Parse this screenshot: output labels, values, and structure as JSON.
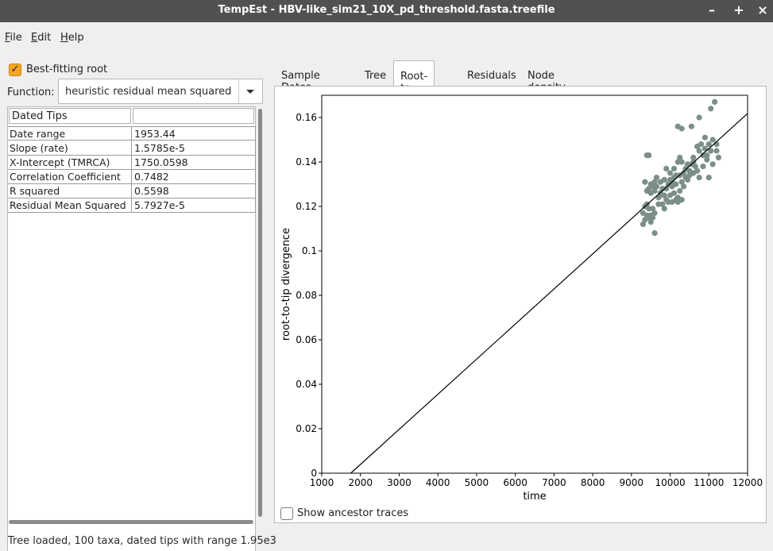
{
  "window": {
    "title": "TempEst - HBV-like_sim21_10X_pd_threshold.fasta.treefile",
    "minimize_label": "–",
    "maximize_label": "+",
    "close_label": "×"
  },
  "menu": [
    {
      "label_u": "F",
      "label_rest": "ile"
    },
    {
      "label_u": "E",
      "label_rest": "dit"
    },
    {
      "label_u": "H",
      "label_rest": "elp"
    }
  ],
  "left_panel": {
    "best_fitting_root_label": "Best-fitting root",
    "best_fitting_root_checked": true,
    "function_label": "Function:",
    "function_value": "heuristic residual mean squared",
    "table_header": "Dated Tips",
    "table_header_value": "",
    "rows": [
      {
        "label": "Date range",
        "value": "1953.44"
      },
      {
        "label": "Slope (rate)",
        "value": "1.5785e-5"
      },
      {
        "label": "X-Intercept (TMRCA)",
        "value": "1750.0598"
      },
      {
        "label": "Correlation Coefficient",
        "value": "0.7482"
      },
      {
        "label": "R squared",
        "value": "0.5598"
      },
      {
        "label": "Residual Mean Squared",
        "value": "5.7927e-5"
      }
    ]
  },
  "tabs": [
    {
      "label": "Sample Dates",
      "active": false
    },
    {
      "label": "Tree",
      "active": false
    },
    {
      "label": "Root-to-tip",
      "active": true
    },
    {
      "label": "Residuals",
      "active": false
    },
    {
      "label": "Node density",
      "active": false
    }
  ],
  "show_ancestor_traces_label": "Show ancestor traces",
  "show_ancestor_traces_checked": false,
  "status_text": "Tree loaded, 100 taxa, dated tips with range 1.95e3",
  "colors": {
    "point": "#7b8f88",
    "line": "#000000",
    "accent": "#f5a623"
  },
  "chart_data": {
    "type": "scatter",
    "xlabel": "time",
    "ylabel": "root-to-tip divergence",
    "xlim": [
      1000,
      12000
    ],
    "ylim": [
      0,
      0.17
    ],
    "x_ticks": [
      1000,
      2000,
      3000,
      4000,
      5000,
      6000,
      7000,
      8000,
      9000,
      10000,
      11000,
      12000
    ],
    "y_ticks": [
      0,
      0.02,
      0.04,
      0.06,
      0.08,
      0.1,
      0.12,
      0.14,
      0.16
    ],
    "y_tick_labels": [
      "0",
      "0.02",
      "0.04",
      "0.06",
      "0.08",
      "0.1",
      "0.12",
      "0.14",
      "0.16"
    ],
    "regression": {
      "slope": 1.5785e-05,
      "x_intercept": 1750.0598
    },
    "grid": false,
    "points": [
      [
        11150,
        0.167
      ],
      [
        11050,
        0.164
      ],
      [
        10750,
        0.16
      ],
      [
        10200,
        0.156
      ],
      [
        10300,
        0.155
      ],
      [
        10550,
        0.156
      ],
      [
        9400,
        0.143
      ],
      [
        9450,
        0.143
      ],
      [
        10900,
        0.151
      ],
      [
        11100,
        0.15
      ],
      [
        11000,
        0.148
      ],
      [
        10800,
        0.148
      ],
      [
        10700,
        0.147
      ],
      [
        11200,
        0.148
      ],
      [
        11200,
        0.145
      ],
      [
        10900,
        0.146
      ],
      [
        11050,
        0.145
      ],
      [
        10750,
        0.145
      ],
      [
        10600,
        0.142
      ],
      [
        10850,
        0.143
      ],
      [
        11250,
        0.142
      ],
      [
        10950,
        0.141
      ],
      [
        10300,
        0.14
      ],
      [
        10200,
        0.14
      ],
      [
        10550,
        0.139
      ],
      [
        10450,
        0.139
      ],
      [
        10650,
        0.138
      ],
      [
        10850,
        0.138
      ],
      [
        10700,
        0.136
      ],
      [
        10500,
        0.136
      ],
      [
        10350,
        0.135
      ],
      [
        10600,
        0.135
      ],
      [
        10250,
        0.134
      ],
      [
        10400,
        0.133
      ],
      [
        10100,
        0.133
      ],
      [
        10000,
        0.132
      ],
      [
        9850,
        0.132
      ],
      [
        9750,
        0.131
      ],
      [
        9950,
        0.13
      ],
      [
        10300,
        0.131
      ],
      [
        10150,
        0.13
      ],
      [
        10050,
        0.129
      ],
      [
        9900,
        0.128
      ],
      [
        9800,
        0.128
      ],
      [
        10450,
        0.132
      ],
      [
        10750,
        0.133
      ],
      [
        11000,
        0.133
      ],
      [
        9350,
        0.131
      ],
      [
        9550,
        0.129
      ],
      [
        9650,
        0.129
      ],
      [
        9450,
        0.128
      ],
      [
        9400,
        0.127
      ],
      [
        9500,
        0.126
      ],
      [
        9600,
        0.127
      ],
      [
        9750,
        0.125
      ],
      [
        9850,
        0.125
      ],
      [
        10000,
        0.125
      ],
      [
        10100,
        0.126
      ],
      [
        10200,
        0.124
      ],
      [
        10300,
        0.123
      ],
      [
        10250,
        0.127
      ],
      [
        9950,
        0.122
      ],
      [
        10050,
        0.122
      ],
      [
        9700,
        0.121
      ],
      [
        9800,
        0.121
      ],
      [
        9900,
        0.123
      ],
      [
        10150,
        0.123
      ],
      [
        9400,
        0.121
      ],
      [
        9350,
        0.12
      ],
      [
        9450,
        0.119
      ],
      [
        9550,
        0.119
      ],
      [
        9300,
        0.117
      ],
      [
        9400,
        0.116
      ],
      [
        9500,
        0.116
      ],
      [
        9600,
        0.117
      ],
      [
        9450,
        0.115
      ],
      [
        9550,
        0.115
      ],
      [
        9350,
        0.114
      ],
      [
        9300,
        0.112
      ],
      [
        9500,
        0.113
      ],
      [
        9600,
        0.108
      ],
      [
        10200,
        0.122
      ],
      [
        10050,
        0.131
      ],
      [
        10150,
        0.134
      ],
      [
        9700,
        0.124
      ],
      [
        10400,
        0.137
      ],
      [
        10600,
        0.14
      ],
      [
        10350,
        0.129
      ],
      [
        9650,
        0.133
      ],
      [
        9900,
        0.137
      ],
      [
        10950,
        0.143
      ],
      [
        11100,
        0.139
      ],
      [
        9500,
        0.13
      ],
      [
        10500,
        0.134
      ],
      [
        9750,
        0.126
      ],
      [
        10100,
        0.137
      ],
      [
        9600,
        0.131
      ],
      [
        10000,
        0.135
      ],
      [
        10250,
        0.142
      ],
      [
        9850,
        0.119
      ]
    ]
  }
}
